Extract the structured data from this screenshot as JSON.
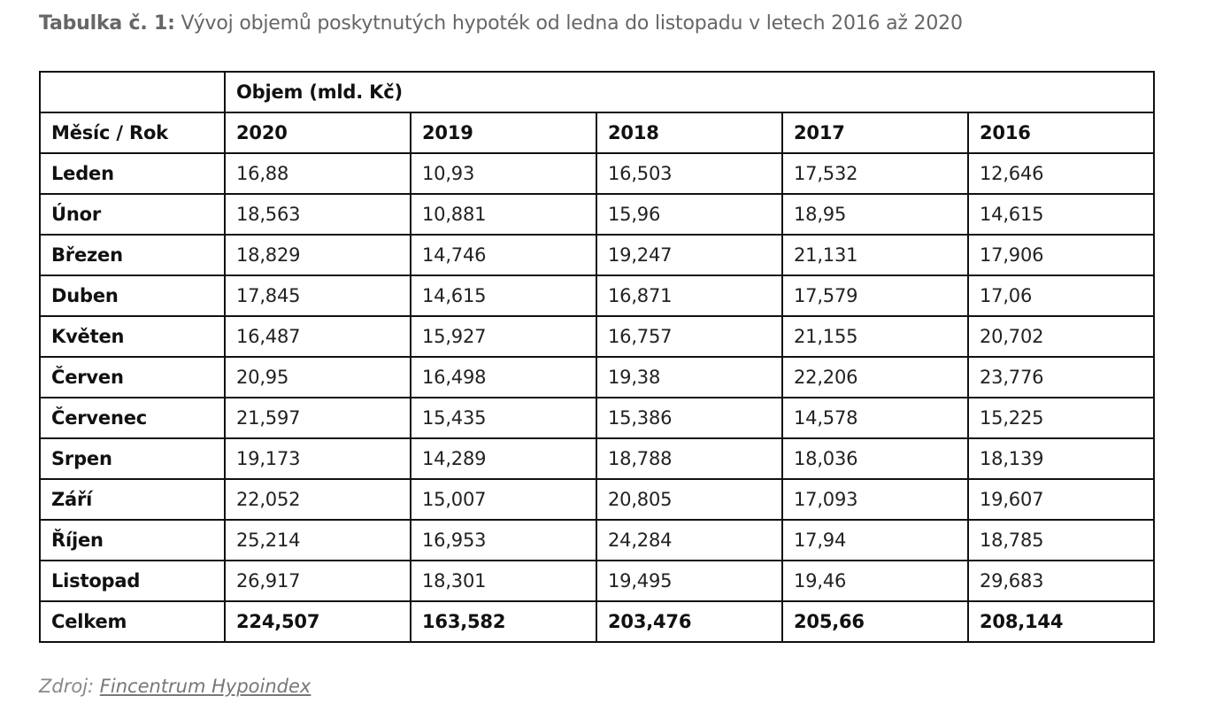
{
  "caption": {
    "label": "Tabulka č. 1:",
    "text": " Vývoj objemů poskytnutých hypoték od ledna do listopadu v letech 2016 až 2020"
  },
  "table": {
    "group_header": "Objem (mld. Kč)",
    "corner_label": "Měsíc / Rok",
    "years": [
      "2020",
      "2019",
      "2018",
      "2017",
      "2016"
    ],
    "rows": [
      {
        "month": "Leden",
        "values": [
          "16,88",
          "10,93",
          "16,503",
          "17,532",
          "12,646"
        ]
      },
      {
        "month": "Únor",
        "values": [
          "18,563",
          "10,881",
          "15,96",
          "18,95",
          "14,615"
        ]
      },
      {
        "month": "Březen",
        "values": [
          "18,829",
          "14,746",
          "19,247",
          "21,131",
          "17,906"
        ]
      },
      {
        "month": "Duben",
        "values": [
          "17,845",
          "14,615",
          "16,871",
          "17,579",
          "17,06"
        ]
      },
      {
        "month": "Květen",
        "values": [
          "16,487",
          "15,927",
          "16,757",
          "21,155",
          "20,702"
        ]
      },
      {
        "month": "Červen",
        "values": [
          "20,95",
          "16,498",
          "19,38",
          "22,206",
          "23,776"
        ]
      },
      {
        "month": "Červenec",
        "values": [
          "21,597",
          "15,435",
          "15,386",
          "14,578",
          "15,225"
        ]
      },
      {
        "month": "Srpen",
        "values": [
          "19,173",
          "14,289",
          "18,788",
          "18,036",
          "18,139"
        ]
      },
      {
        "month": "Září",
        "values": [
          "22,052",
          "15,007",
          "20,805",
          "17,093",
          "19,607"
        ]
      },
      {
        "month": "Říjen",
        "values": [
          "25,214",
          "16,953",
          "24,284",
          "17,94",
          "18,785"
        ]
      },
      {
        "month": "Listopad",
        "values": [
          "26,917",
          "18,301",
          "19,495",
          "19,46",
          "29,683"
        ]
      }
    ],
    "total": {
      "label": "Celkem",
      "values": [
        "224,507",
        "163,582",
        "203,476",
        "205,66",
        "208,144"
      ]
    }
  },
  "source": {
    "prefix": "Zdroj: ",
    "link_text": "Fincentrum Hypoindex"
  }
}
